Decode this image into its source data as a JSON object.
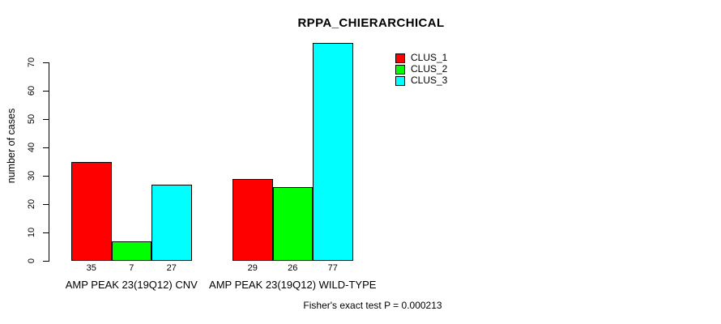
{
  "title": "RPPA_CHIERARCHICAL",
  "chart_data": {
    "type": "bar",
    "title": "RPPA_CHIERARCHICAL",
    "xlabel": "",
    "ylabel": "number of cases",
    "categories": [
      "AMP PEAK 23(19Q12) CNV",
      "AMP PEAK 23(19Q12) WILD-TYPE"
    ],
    "series": [
      {
        "name": "CLUS_1",
        "color": "#ff0000",
        "values": [
          35,
          29
        ]
      },
      {
        "name": "CLUS_2",
        "color": "#00ff00",
        "values": [
          7,
          26
        ]
      },
      {
        "name": "CLUS_3",
        "color": "#00ffff",
        "values": [
          27,
          77
        ]
      }
    ],
    "yticks": [
      0,
      10,
      20,
      30,
      40,
      50,
      60,
      70
    ],
    "ylim": [
      0,
      70
    ],
    "bar_value_labels": [
      [
        35,
        7,
        27
      ],
      [
        29,
        26,
        77
      ]
    ],
    "grid": false,
    "legend_position": "top-right",
    "annotation": "Fisher's exact test P = 0.000213"
  }
}
